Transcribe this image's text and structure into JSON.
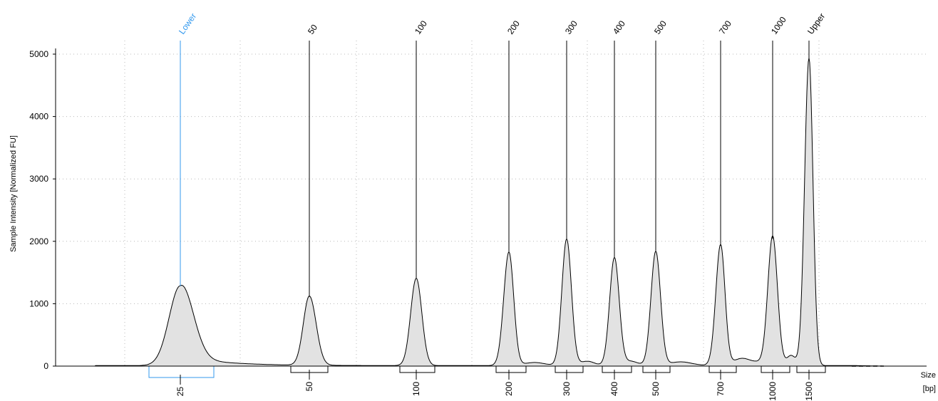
{
  "chart_data": {
    "type": "area",
    "title": "",
    "ylabel": "Sample Intensity [Normalized FU]",
    "xlabel_line1": "Size",
    "xlabel_line2": "[bp]",
    "ylim": [
      0,
      5200
    ],
    "y_ticks": [
      0,
      1000,
      2000,
      3000,
      4000,
      5000
    ],
    "grid": true,
    "colors": {
      "marker": "#3399ee",
      "ladder": "#000000",
      "fill": "#e2e2e2",
      "grid": "#b8b8b8"
    },
    "peaks": [
      {
        "label": "Lower",
        "size_label": "25",
        "height": 1280,
        "is_marker": true
      },
      {
        "label": "50",
        "size_label": "50",
        "height": 1110,
        "is_marker": false
      },
      {
        "label": "100",
        "size_label": "100",
        "height": 1400,
        "is_marker": false
      },
      {
        "label": "200",
        "size_label": "200",
        "height": 1820,
        "is_marker": false
      },
      {
        "label": "300",
        "size_label": "300",
        "height": 2030,
        "is_marker": false
      },
      {
        "label": "400",
        "size_label": "400",
        "height": 1730,
        "is_marker": false
      },
      {
        "label": "500",
        "size_label": "500",
        "height": 1830,
        "is_marker": false
      },
      {
        "label": "700",
        "size_label": "700",
        "height": 1930,
        "is_marker": false
      },
      {
        "label": "1000",
        "size_label": "1000",
        "height": 2040,
        "is_marker": false
      },
      {
        "label": "Upper",
        "size_label": "1500",
        "height": 4930,
        "is_marker": false
      }
    ]
  }
}
